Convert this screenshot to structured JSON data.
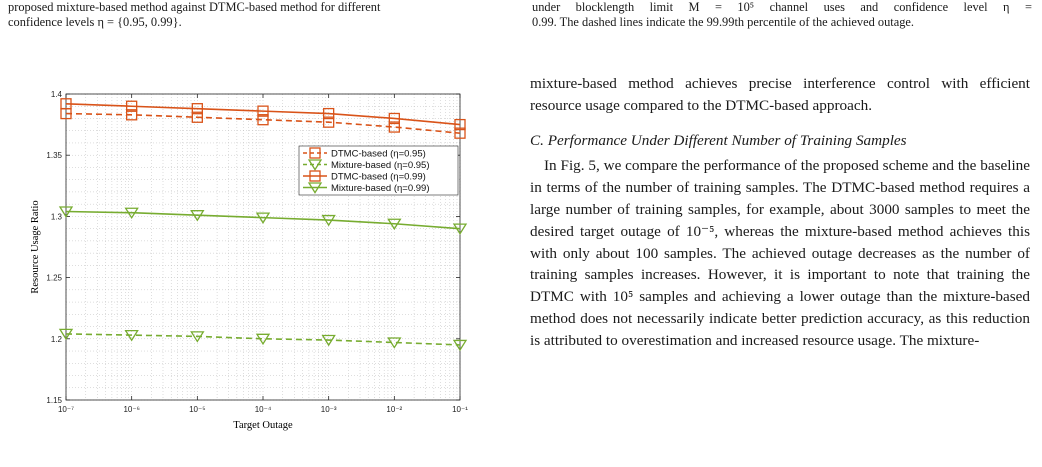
{
  "captions": {
    "left_line1": "proposed mixture-based method against DTMC-based method for different",
    "left_line2": "confidence levels η = {0.95, 0.99}.",
    "right_line1": "under blocklength limit M = 10⁵ channel uses and confidence level η =",
    "right_line2": "0.99. The dashed lines indicate the 99.99th percentile of the achieved outage."
  },
  "body": {
    "para1": "mixture-based method achieves precise interference control with efficient resource usage compared to the DTMC-based approach.",
    "section_heading": "C. Performance Under Different Number of Training Samples",
    "para2": "In Fig. 5, we compare the performance of the proposed scheme and the baseline in terms of the number of training samples. The DTMC-based method requires a large number of training samples, for example, about 3000 samples to meet the desired target outage of 10⁻⁵, whereas the mixture-based method achieves this with only about 100 samples. The achieved outage decreases as the number of training samples increases. However, it is important to note that training the DTMC with 10⁵ samples and achieving a lower outage than the mixture-based method does not necessarily indicate better prediction accuracy, as this reduction is attributed to overestimation and increased resource usage. The mixture-"
  },
  "chart_data": {
    "type": "line",
    "xlabel": "Target Outage",
    "ylabel": "Resource Usage Ratio",
    "x": [
      1e-07,
      1e-06,
      1e-05,
      0.0001,
      0.001,
      0.01,
      0.1
    ],
    "x_tick_labels": [
      "10⁻⁷",
      "10⁻⁶",
      "10⁻⁵",
      "10⁻⁴",
      "10⁻³",
      "10⁻²",
      "10⁻¹"
    ],
    "x_scale": "log",
    "xlim": [
      1e-07,
      0.1
    ],
    "ylim": [
      1.15,
      1.4
    ],
    "y_ticks": [
      1.15,
      1.2,
      1.25,
      1.3,
      1.35,
      1.4
    ],
    "y_tick_labels": [
      "1.15",
      "1.2",
      "1.25",
      "1.3",
      "1.35",
      "1.4"
    ],
    "grid": true,
    "legend_position": "top-right",
    "series": [
      {
        "name": "DTMC-based (η=0.95)",
        "color": "#d95319",
        "marker": "square",
        "dash": true,
        "values": [
          1.384,
          1.383,
          1.381,
          1.379,
          1.377,
          1.373,
          1.368
        ]
      },
      {
        "name": "Mixture-based (η=0.95)",
        "color": "#77ac30",
        "marker": "triangle",
        "dash": true,
        "values": [
          1.204,
          1.203,
          1.202,
          1.2,
          1.199,
          1.197,
          1.195
        ]
      },
      {
        "name": "DTMC-based (η=0.99)",
        "color": "#d95319",
        "marker": "square",
        "dash": false,
        "values": [
          1.392,
          1.39,
          1.388,
          1.386,
          1.384,
          1.38,
          1.375
        ]
      },
      {
        "name": "Mixture-based (η=0.99)",
        "color": "#77ac30",
        "marker": "triangle",
        "dash": false,
        "values": [
          1.304,
          1.303,
          1.301,
          1.299,
          1.297,
          1.294,
          1.29
        ]
      }
    ],
    "legend_order": [
      0,
      1,
      2,
      3
    ]
  }
}
